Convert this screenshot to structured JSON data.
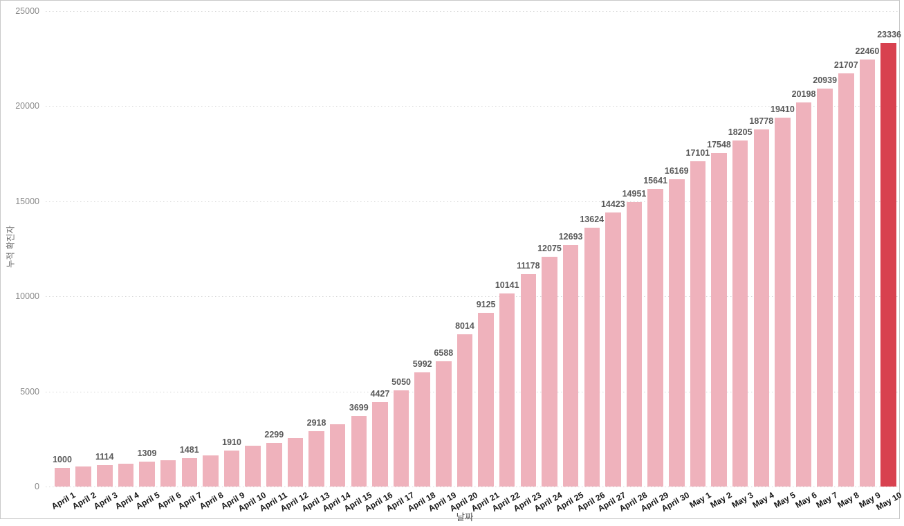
{
  "chart_data": {
    "type": "bar",
    "title": "",
    "xlabel": "날짜",
    "ylabel": "누적 확진자",
    "ylim": [
      0,
      25000
    ],
    "yticks": [
      0,
      5000,
      10000,
      15000,
      20000,
      25000
    ],
    "grid": "dotted-horizontal",
    "legend": "none",
    "categories": [
      "April 1",
      "April 2",
      "April 3",
      "April 4",
      "April 5",
      "April 6",
      "April 7",
      "April 8",
      "April 9",
      "April 10",
      "April 11",
      "April 12",
      "April 13",
      "April 14",
      "April 15",
      "April 16",
      "April 17",
      "April 18",
      "April 19",
      "April 20",
      "April 21",
      "April 22",
      "April 23",
      "April 24",
      "April 25",
      "April 26",
      "April 27",
      "April 28",
      "April 29",
      "April 30",
      "May 1",
      "May 2",
      "May 3",
      "May 4",
      "May 5",
      "May 6",
      "May 7",
      "May 8",
      "May 9",
      "May 10"
    ],
    "values": [
      1000,
      1060,
      1114,
      1200,
      1309,
      1390,
      1481,
      1650,
      1910,
      2140,
      2299,
      2550,
      2918,
      3270,
      3699,
      4427,
      5050,
      5992,
      6588,
      8014,
      9125,
      10141,
      11178,
      12075,
      12693,
      13624,
      14423,
      14951,
      15641,
      16169,
      17101,
      17548,
      18205,
      18778,
      19410,
      20198,
      20939,
      21707,
      22460,
      23336
    ],
    "data_labels": [
      "1000",
      "",
      "1114",
      "",
      "1309",
      "",
      "1481",
      "",
      "1910",
      "",
      "2299",
      "",
      "2918",
      "",
      "3699",
      "4427",
      "5050",
      "5992",
      "6588",
      "8014",
      "9125",
      "10141",
      "11178",
      "12075",
      "12693",
      "13624",
      "14423",
      "14951",
      "15641",
      "16169",
      "17101",
      "17548",
      "18205",
      "18778",
      "19410",
      "20198",
      "20939",
      "21707",
      "22460",
      "23336"
    ],
    "highlight_index": 39,
    "colors": {
      "bar": "#efb2bc",
      "highlight_bar": "#d8414f",
      "value_label": "#595959",
      "x_tick_label": "#141414",
      "y_tick_label": "#8a8a8a",
      "axis_title": "#666666",
      "gridline": "#d6d6d6",
      "frame_border": "#c9c9c9"
    }
  }
}
